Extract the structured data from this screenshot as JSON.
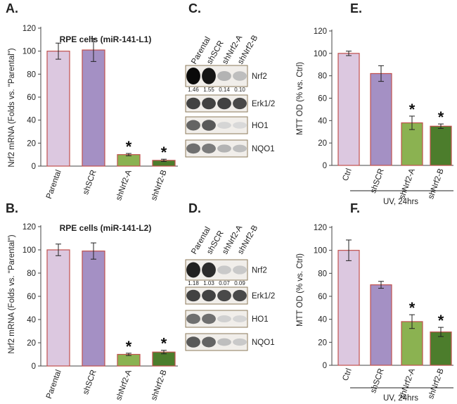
{
  "chart_data": [
    {
      "id": "A",
      "type": "bar",
      "panel_label": "A.",
      "title": "RPE cells (miR-141-L1)",
      "ylabel": "Nrf2 mRNA (Folds vs. \"Parental\")",
      "xlabel": "",
      "ylim": [
        0,
        120
      ],
      "yticks": [
        0,
        20,
        40,
        60,
        80,
        100,
        120
      ],
      "categories": [
        "Parental",
        "shSCR",
        "shNrf2-A",
        "shNrf2-B"
      ],
      "values": [
        100,
        101,
        10,
        5
      ],
      "errors": [
        7,
        10,
        1,
        1
      ],
      "stars": [
        "",
        "",
        "*",
        "*"
      ],
      "bar_colors": [
        "#dcc8e0",
        "#a490c4",
        "#8bb251",
        "#4c7d2c"
      ]
    },
    {
      "id": "B",
      "type": "bar",
      "panel_label": "B.",
      "title": "RPE cells (miR-141-L2)",
      "ylabel": "Nrf2 mRNA (Folds vs. \"Parental\")",
      "xlabel": "",
      "ylim": [
        0,
        120
      ],
      "yticks": [
        0,
        20,
        40,
        60,
        80,
        100,
        120
      ],
      "categories": [
        "Parental",
        "shSCR",
        "shNrf2-A",
        "shNrf2-B"
      ],
      "values": [
        100,
        99,
        10,
        12
      ],
      "errors": [
        5,
        7,
        1,
        1.5
      ],
      "stars": [
        "",
        "",
        "*",
        "*"
      ],
      "bar_colors": [
        "#dcc8e0",
        "#a490c4",
        "#8bb251",
        "#4c7d2c"
      ]
    },
    {
      "id": "E",
      "type": "bar",
      "panel_label": "E.",
      "title": "",
      "ylabel": "MTT OD (% vs. Ctrl)",
      "xlabel": "UV, 24hrs",
      "ylim": [
        0,
        120
      ],
      "yticks": [
        0,
        20,
        40,
        60,
        80,
        100,
        120
      ],
      "categories": [
        "Ctrl",
        "shSCR",
        "shNrf2-A",
        "shNrf2-B"
      ],
      "values": [
        100,
        82,
        38,
        35
      ],
      "errors": [
        2,
        7,
        6,
        2
      ],
      "stars": [
        "",
        "",
        "*",
        "*"
      ],
      "bar_colors": [
        "#dcc8e0",
        "#a490c4",
        "#8bb251",
        "#4c7d2c"
      ]
    },
    {
      "id": "F",
      "type": "bar",
      "panel_label": "F.",
      "title": "",
      "ylabel": "MTT OD (% vs. Ctrl)",
      "xlabel": "UV, 24hrs",
      "ylim": [
        0,
        120
      ],
      "yticks": [
        0,
        20,
        40,
        60,
        80,
        100,
        120
      ],
      "categories": [
        "Ctrl",
        "shSCR",
        "shNrf2-A",
        "shNrf2-B"
      ],
      "values": [
        100,
        70,
        38,
        29
      ],
      "errors": [
        9,
        3,
        6,
        4
      ],
      "stars": [
        "",
        "",
        "*",
        "*"
      ],
      "bar_colors": [
        "#dcc8e0",
        "#a490c4",
        "#8bb251",
        "#4c7d2c"
      ]
    }
  ],
  "blots": [
    {
      "id": "C",
      "panel_label": "C.",
      "lanes": [
        "Parental",
        "shSCR",
        "shNrf2-A",
        "shNrf2-B"
      ],
      "rows": [
        {
          "protein": "Nrf2",
          "intensities": [
            1.0,
            0.95,
            0.25,
            0.2
          ],
          "quant": [
            "1.46",
            "1.55",
            "0.14",
            "0.10"
          ]
        },
        {
          "protein": "Erk1/2",
          "intensities": [
            0.75,
            0.75,
            0.75,
            0.72
          ],
          "quant": []
        },
        {
          "protein": "HO1",
          "intensities": [
            0.6,
            0.65,
            0.1,
            0.08
          ],
          "quant": []
        },
        {
          "protein": "NQO1",
          "intensities": [
            0.55,
            0.5,
            0.25,
            0.2
          ],
          "quant": []
        }
      ]
    },
    {
      "id": "D",
      "panel_label": "D.",
      "lanes": [
        "Parental",
        "shSCR",
        "shNrf2-A",
        "shNrf2-B"
      ],
      "rows": [
        {
          "protein": "Nrf2",
          "intensities": [
            0.9,
            0.85,
            0.15,
            0.15
          ],
          "quant": [
            "1.18",
            "1.03",
            "0.07",
            "0.09"
          ]
        },
        {
          "protein": "Erk1/2",
          "intensities": [
            0.75,
            0.75,
            0.72,
            0.72
          ],
          "quant": []
        },
        {
          "protein": "HO1",
          "intensities": [
            0.55,
            0.55,
            0.12,
            0.1
          ],
          "quant": []
        },
        {
          "protein": "NQO1",
          "intensities": [
            0.65,
            0.6,
            0.2,
            0.15
          ],
          "quant": []
        }
      ]
    }
  ],
  "colors": {
    "bar_edge": "#c0504d",
    "blot_border": "#8c7a5a",
    "protein_label": "#3a2f20",
    "axis": "#444444"
  }
}
